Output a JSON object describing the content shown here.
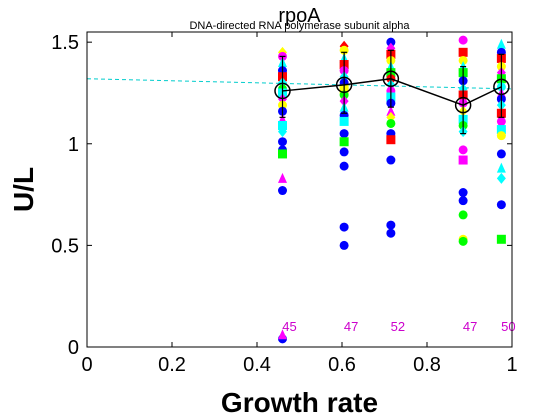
{
  "chart_data": {
    "type": "scatter",
    "title": "rpoA",
    "subtitle": "DNA-directed RNA polymerase subunit alpha",
    "xlabel": "Growth rate",
    "ylabel": "U/L",
    "xlim": [
      0,
      1.0
    ],
    "ylim": [
      0,
      1.55
    ],
    "xticks": [
      "0",
      "0.2",
      "0.4",
      "0.6",
      "0.8",
      "1"
    ],
    "yticks": [
      "0",
      "0.5",
      "1",
      "1.5"
    ],
    "grid": false,
    "colors": {
      "blue": "#0000ff",
      "cyan": "#00ffff",
      "red": "#ff0000",
      "magenta": "#ff00ff",
      "yellow": "#ffff00",
      "green": "#00ff00",
      "trend": "#00cccc",
      "mean": "#000000",
      "count": "#cc00cc"
    },
    "groups": [
      {
        "x": 0.46,
        "count": "45",
        "points": [
          {
            "y": 1.45,
            "shape": "diamond",
            "color": "yellow"
          },
          {
            "y": 1.43,
            "shape": "circle",
            "color": "magenta"
          },
          {
            "y": 1.4,
            "shape": "triangle",
            "color": "cyan"
          },
          {
            "y": 1.36,
            "shape": "circle",
            "color": "blue"
          },
          {
            "y": 1.33,
            "shape": "square",
            "color": "red"
          },
          {
            "y": 1.3,
            "shape": "diamond",
            "color": "cyan"
          },
          {
            "y": 1.27,
            "shape": "circle",
            "color": "green"
          },
          {
            "y": 1.25,
            "shape": "square",
            "color": "cyan"
          },
          {
            "y": 1.22,
            "shape": "diamond",
            "color": "magenta"
          },
          {
            "y": 1.19,
            "shape": "circle",
            "color": "yellow"
          },
          {
            "y": 1.16,
            "shape": "circle",
            "color": "blue"
          },
          {
            "y": 1.12,
            "shape": "triangle",
            "color": "magenta"
          },
          {
            "y": 1.09,
            "shape": "square",
            "color": "cyan"
          },
          {
            "y": 1.06,
            "shape": "diamond",
            "color": "cyan"
          },
          {
            "y": 1.01,
            "shape": "circle",
            "color": "blue"
          },
          {
            "y": 0.97,
            "shape": "circle",
            "color": "blue"
          },
          {
            "y": 0.95,
            "shape": "square",
            "color": "green"
          },
          {
            "y": 0.83,
            "shape": "triangle",
            "color": "magenta"
          },
          {
            "y": 0.77,
            "shape": "circle",
            "color": "blue"
          },
          {
            "y": 0.04,
            "shape": "circle",
            "color": "blue"
          },
          {
            "y": 0.06,
            "shape": "triangle",
            "color": "magenta"
          }
        ]
      },
      {
        "x": 0.605,
        "count": "47",
        "points": [
          {
            "y": 1.48,
            "shape": "diamond",
            "color": "red"
          },
          {
            "y": 1.46,
            "shape": "circle",
            "color": "yellow"
          },
          {
            "y": 1.42,
            "shape": "triangle",
            "color": "cyan"
          },
          {
            "y": 1.39,
            "shape": "square",
            "color": "red"
          },
          {
            "y": 1.36,
            "shape": "circle",
            "color": "magenta"
          },
          {
            "y": 1.33,
            "shape": "diamond",
            "color": "cyan"
          },
          {
            "y": 1.3,
            "shape": "circle",
            "color": "blue"
          },
          {
            "y": 1.27,
            "shape": "square",
            "color": "yellow"
          },
          {
            "y": 1.24,
            "shape": "circle",
            "color": "green"
          },
          {
            "y": 1.21,
            "shape": "diamond",
            "color": "magenta"
          },
          {
            "y": 1.18,
            "shape": "triangle",
            "color": "cyan"
          },
          {
            "y": 1.14,
            "shape": "circle",
            "color": "blue"
          },
          {
            "y": 1.11,
            "shape": "square",
            "color": "cyan"
          },
          {
            "y": 1.05,
            "shape": "circle",
            "color": "blue"
          },
          {
            "y": 1.01,
            "shape": "square",
            "color": "green"
          },
          {
            "y": 0.96,
            "shape": "circle",
            "color": "blue"
          },
          {
            "y": 0.89,
            "shape": "circle",
            "color": "blue"
          },
          {
            "y": 0.59,
            "shape": "circle",
            "color": "blue"
          },
          {
            "y": 0.5,
            "shape": "circle",
            "color": "blue"
          }
        ]
      },
      {
        "x": 0.715,
        "count": "52",
        "points": [
          {
            "y": 1.5,
            "shape": "circle",
            "color": "blue"
          },
          {
            "y": 1.47,
            "shape": "diamond",
            "color": "magenta"
          },
          {
            "y": 1.44,
            "shape": "square",
            "color": "red"
          },
          {
            "y": 1.41,
            "shape": "circle",
            "color": "yellow"
          },
          {
            "y": 1.38,
            "shape": "triangle",
            "color": "cyan"
          },
          {
            "y": 1.35,
            "shape": "square",
            "color": "green"
          },
          {
            "y": 1.32,
            "shape": "circle",
            "color": "red"
          },
          {
            "y": 1.29,
            "shape": "diamond",
            "color": "cyan"
          },
          {
            "y": 1.26,
            "shape": "circle",
            "color": "magenta"
          },
          {
            "y": 1.23,
            "shape": "square",
            "color": "cyan"
          },
          {
            "y": 1.2,
            "shape": "circle",
            "color": "blue"
          },
          {
            "y": 1.16,
            "shape": "triangle",
            "color": "magenta"
          },
          {
            "y": 1.13,
            "shape": "diamond",
            "color": "yellow"
          },
          {
            "y": 1.1,
            "shape": "circle",
            "color": "green"
          },
          {
            "y": 1.05,
            "shape": "circle",
            "color": "blue"
          },
          {
            "y": 1.02,
            "shape": "square",
            "color": "red"
          },
          {
            "y": 0.92,
            "shape": "circle",
            "color": "blue"
          },
          {
            "y": 0.6,
            "shape": "circle",
            "color": "blue"
          },
          {
            "y": 0.56,
            "shape": "circle",
            "color": "blue"
          }
        ]
      },
      {
        "x": 0.885,
        "count": "47",
        "points": [
          {
            "y": 1.51,
            "shape": "circle",
            "color": "magenta"
          },
          {
            "y": 1.45,
            "shape": "square",
            "color": "red"
          },
          {
            "y": 1.41,
            "shape": "circle",
            "color": "yellow"
          },
          {
            "y": 1.38,
            "shape": "triangle",
            "color": "cyan"
          },
          {
            "y": 1.35,
            "shape": "square",
            "color": "green"
          },
          {
            "y": 1.31,
            "shape": "circle",
            "color": "blue"
          },
          {
            "y": 1.27,
            "shape": "diamond",
            "color": "cyan"
          },
          {
            "y": 1.24,
            "shape": "square",
            "color": "red"
          },
          {
            "y": 1.2,
            "shape": "circle",
            "color": "magenta"
          },
          {
            "y": 1.16,
            "shape": "diamond",
            "color": "yellow"
          },
          {
            "y": 1.12,
            "shape": "square",
            "color": "cyan"
          },
          {
            "y": 1.09,
            "shape": "circle",
            "color": "green"
          },
          {
            "y": 1.06,
            "shape": "diamond",
            "color": "cyan"
          },
          {
            "y": 0.97,
            "shape": "circle",
            "color": "magenta"
          },
          {
            "y": 0.92,
            "shape": "square",
            "color": "magenta"
          },
          {
            "y": 0.76,
            "shape": "circle",
            "color": "blue"
          },
          {
            "y": 0.72,
            "shape": "circle",
            "color": "blue"
          },
          {
            "y": 0.65,
            "shape": "circle",
            "color": "green"
          },
          {
            "y": 0.53,
            "shape": "circle",
            "color": "yellow"
          },
          {
            "y": 0.52,
            "shape": "circle",
            "color": "green"
          }
        ]
      },
      {
        "x": 0.975,
        "count": "50",
        "points": [
          {
            "y": 1.49,
            "shape": "triangle",
            "color": "cyan"
          },
          {
            "y": 1.45,
            "shape": "circle",
            "color": "blue"
          },
          {
            "y": 1.42,
            "shape": "square",
            "color": "red"
          },
          {
            "y": 1.38,
            "shape": "circle",
            "color": "yellow"
          },
          {
            "y": 1.35,
            "shape": "diamond",
            "color": "magenta"
          },
          {
            "y": 1.32,
            "shape": "square",
            "color": "green"
          },
          {
            "y": 1.28,
            "shape": "circle",
            "color": "cyan"
          },
          {
            "y": 1.25,
            "shape": "triangle",
            "color": "magenta"
          },
          {
            "y": 1.22,
            "shape": "circle",
            "color": "blue"
          },
          {
            "y": 1.19,
            "shape": "diamond",
            "color": "cyan"
          },
          {
            "y": 1.15,
            "shape": "square",
            "color": "red"
          },
          {
            "y": 1.11,
            "shape": "circle",
            "color": "magenta"
          },
          {
            "y": 1.07,
            "shape": "square",
            "color": "cyan"
          },
          {
            "y": 1.04,
            "shape": "circle",
            "color": "yellow"
          },
          {
            "y": 0.95,
            "shape": "circle",
            "color": "blue"
          },
          {
            "y": 0.88,
            "shape": "triangle",
            "color": "cyan"
          },
          {
            "y": 0.83,
            "shape": "diamond",
            "color": "cyan"
          },
          {
            "y": 0.7,
            "shape": "circle",
            "color": "blue"
          },
          {
            "y": 0.53,
            "shape": "square",
            "color": "green"
          }
        ]
      }
    ],
    "mean_series": {
      "x": [
        0.46,
        0.605,
        0.715,
        0.885,
        0.975
      ],
      "y": [
        1.26,
        1.29,
        1.32,
        1.19,
        1.28
      ],
      "err_low": [
        1.13,
        1.15,
        1.18,
        1.05,
        1.13
      ],
      "err_high": [
        1.43,
        1.45,
        1.46,
        1.38,
        1.44
      ]
    },
    "trend_line": {
      "x": [
        0,
        1.0
      ],
      "y": [
        1.32,
        1.27
      ]
    }
  }
}
